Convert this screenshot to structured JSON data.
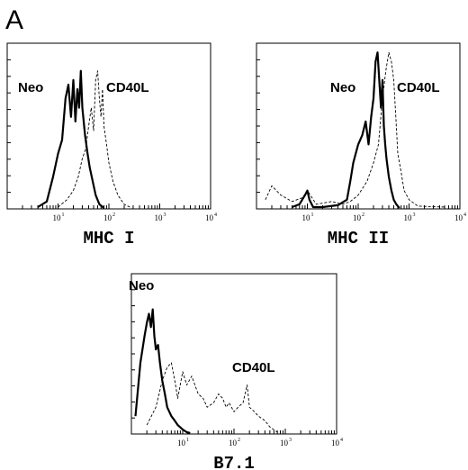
{
  "panel_letter": "A",
  "chart_data": [
    {
      "type": "line",
      "xlabel": "MHC I",
      "xscale": "log",
      "xlim": [
        1,
        10000
      ],
      "xticks": [
        "10",
        "10",
        "10",
        "10"
      ],
      "xtick_exponents": [
        "1",
        "2",
        "3",
        "4"
      ],
      "grid": false,
      "series": [
        {
          "name": "Neo",
          "style": "solid",
          "x": [
            4,
            6,
            8,
            10,
            12,
            14,
            16,
            18,
            20,
            22,
            24,
            26,
            28,
            30,
            34,
            38,
            42,
            48,
            55,
            65,
            80
          ],
          "y": [
            2,
            8,
            35,
            60,
            75,
            120,
            135,
            100,
            140,
            95,
            130,
            110,
            150,
            110,
            80,
            60,
            45,
            30,
            15,
            5,
            1
          ]
        },
        {
          "name": "CD40L",
          "style": "dashed",
          "x": [
            10,
            15,
            20,
            25,
            30,
            35,
            40,
            45,
            50,
            55,
            60,
            65,
            70,
            75,
            80,
            90,
            100,
            120,
            150,
            200,
            280
          ],
          "y": [
            2,
            10,
            20,
            35,
            55,
            65,
            90,
            110,
            85,
            140,
            150,
            120,
            100,
            130,
            90,
            70,
            50,
            30,
            15,
            5,
            1
          ]
        }
      ]
    },
    {
      "type": "line",
      "xlabel": "MHC II",
      "xscale": "log",
      "xlim": [
        1,
        10000
      ],
      "xticks": [
        "10",
        "10",
        "10",
        "10"
      ],
      "xtick_exponents": [
        "1",
        "2",
        "3",
        "4"
      ],
      "grid": false,
      "series": [
        {
          "name": "Neo",
          "style": "solid",
          "x": [
            5,
            7,
            9,
            10,
            11,
            13,
            20,
            40,
            60,
            70,
            80,
            100,
            120,
            140,
            160,
            180,
            200,
            220,
            240,
            260,
            280,
            300,
            320,
            340,
            360,
            400,
            450,
            500,
            560,
            650
          ],
          "y": [
            2,
            5,
            15,
            20,
            10,
            2,
            2,
            4,
            10,
            30,
            50,
            70,
            80,
            95,
            70,
            100,
            120,
            160,
            170,
            140,
            110,
            140,
            90,
            70,
            55,
            35,
            20,
            10,
            5,
            1
          ]
        },
        {
          "name": "CD40L",
          "style": "dashed",
          "x": [
            1.5,
            2,
            3,
            5,
            8,
            10,
            15,
            30,
            50,
            70,
            100,
            150,
            200,
            250,
            300,
            350,
            400,
            450,
            500,
            550,
            600,
            700,
            800,
            1000,
            1500,
            5000
          ],
          "y": [
            10,
            25,
            15,
            8,
            12,
            20,
            5,
            8,
            5,
            8,
            15,
            30,
            50,
            70,
            120,
            150,
            170,
            160,
            140,
            100,
            60,
            40,
            20,
            10,
            3,
            2
          ]
        }
      ]
    },
    {
      "type": "line",
      "xlabel": "B7.1",
      "xscale": "log",
      "xlim": [
        1,
        10000
      ],
      "xticks": [
        "10",
        "10",
        "10",
        "10"
      ],
      "xtick_exponents": [
        "1",
        "2",
        "3",
        "4"
      ],
      "grid": false,
      "series": [
        {
          "name": "Neo",
          "style": "solid",
          "x": [
            1.2,
            1.5,
            1.8,
            2.0,
            2.2,
            2.4,
            2.6,
            2.8,
            3.0,
            3.3,
            3.6,
            4.0,
            4.5,
            5.0,
            6.0,
            7.0,
            8.0,
            10,
            12,
            14
          ],
          "y": [
            20,
            80,
            110,
            125,
            135,
            120,
            140,
            110,
            95,
            100,
            80,
            60,
            45,
            30,
            20,
            15,
            10,
            5,
            2,
            1
          ]
        },
        {
          "name": "CD40L",
          "style": "dashed",
          "x": [
            2,
            3,
            4,
            5,
            6,
            7,
            8,
            10,
            12,
            15,
            20,
            25,
            30,
            40,
            50,
            60,
            70,
            80,
            100,
            120,
            150,
            180,
            200,
            250,
            300,
            400,
            500,
            700
          ],
          "y": [
            10,
            30,
            60,
            75,
            80,
            60,
            40,
            70,
            55,
            65,
            45,
            40,
            30,
            35,
            45,
            40,
            30,
            35,
            25,
            30,
            35,
            55,
            30,
            25,
            20,
            15,
            8,
            2
          ]
        }
      ]
    }
  ]
}
